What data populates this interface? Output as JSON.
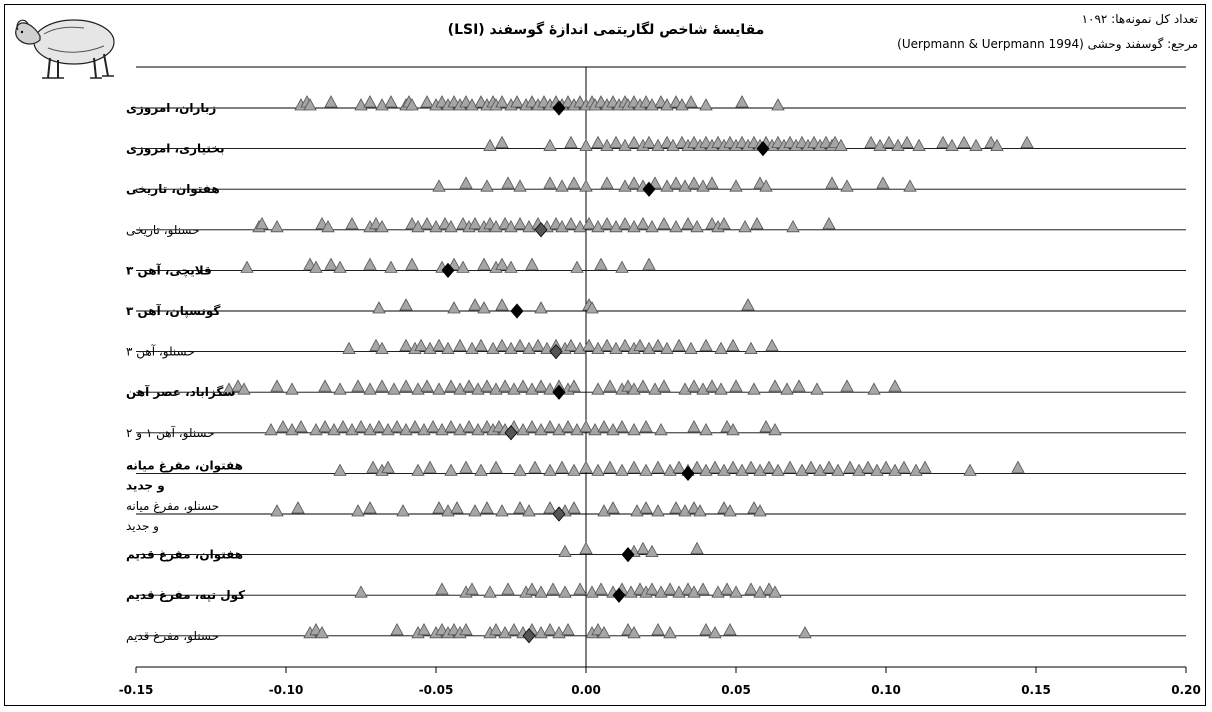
{
  "chart_data": {
    "type": "scatter",
    "title": "مقایسهٔ شاخص لگاریتمی اندازهٔ گوسفند (LSI)",
    "note_total": "تعداد کل نمونه‌ها: ۱۰۹۲",
    "note_reference": "مرجع: گوسفند وحشی (Uerpmann & Uerpmann 1994)",
    "xlim": [
      -0.15,
      0.2
    ],
    "xticks": [
      "-0.15",
      "-0.10",
      "-0.05",
      "0.00",
      "0.05",
      "0.10",
      "0.15",
      "0.20"
    ],
    "xtick_values": [
      -0.15,
      -0.1,
      -0.05,
      0.0,
      0.05,
      0.1,
      0.15,
      0.2
    ],
    "marker_colors": {
      "sample": "#a6a6a6",
      "sample_edge": "#555555",
      "mean_highlight": "#000000",
      "mean_other": "#555555"
    },
    "rows": [
      {
        "label": [
          "زباران، امروزی"
        ],
        "bold": true,
        "mean": -0.009,
        "points": [
          -0.095,
          -0.093,
          -0.092,
          -0.085,
          -0.075,
          -0.072,
          -0.068,
          -0.065,
          -0.06,
          -0.059,
          -0.058,
          -0.053,
          -0.05,
          -0.048,
          -0.046,
          -0.044,
          -0.042,
          -0.04,
          -0.038,
          -0.035,
          -0.033,
          -0.031,
          -0.03,
          -0.028,
          -0.025,
          -0.023,
          -0.02,
          -0.018,
          -0.016,
          -0.014,
          -0.012,
          -0.01,
          -0.008,
          -0.006,
          -0.004,
          -0.002,
          0.0,
          0.002,
          0.003,
          0.005,
          0.007,
          0.009,
          0.011,
          0.013,
          0.014,
          0.016,
          0.018,
          0.02,
          0.022,
          0.025,
          0.027,
          0.03,
          0.032,
          0.035,
          0.04,
          0.052,
          0.064
        ]
      },
      {
        "label": [
          "بختیاری، امروزی"
        ],
        "bold": true,
        "mean": 0.059,
        "points": [
          -0.032,
          -0.028,
          -0.012,
          -0.005,
          0.0,
          0.004,
          0.007,
          0.01,
          0.013,
          0.016,
          0.019,
          0.021,
          0.024,
          0.027,
          0.029,
          0.032,
          0.034,
          0.036,
          0.038,
          0.04,
          0.042,
          0.044,
          0.046,
          0.048,
          0.05,
          0.052,
          0.054,
          0.056,
          0.058,
          0.06,
          0.062,
          0.064,
          0.066,
          0.068,
          0.07,
          0.072,
          0.074,
          0.076,
          0.078,
          0.08,
          0.082,
          0.083,
          0.085,
          0.095,
          0.098,
          0.101,
          0.104,
          0.107,
          0.111,
          0.119,
          0.122,
          0.126,
          0.13,
          0.135,
          0.137,
          0.147
        ]
      },
      {
        "label": [
          "هفتوان، تاریخی"
        ],
        "bold": true,
        "mean": 0.021,
        "points": [
          -0.049,
          -0.04,
          -0.033,
          -0.026,
          -0.022,
          -0.012,
          -0.008,
          -0.004,
          0.0,
          0.007,
          0.013,
          0.016,
          0.019,
          0.023,
          0.027,
          0.03,
          0.033,
          0.036,
          0.039,
          0.042,
          0.05,
          0.058,
          0.06,
          0.082,
          0.087,
          0.099,
          0.108
        ]
      },
      {
        "label": [
          "حسنلو، تاریخی"
        ],
        "bold": false,
        "mean": -0.015,
        "points": [
          -0.109,
          -0.108,
          -0.103,
          -0.088,
          -0.086,
          -0.078,
          -0.072,
          -0.07,
          -0.068,
          -0.058,
          -0.056,
          -0.053,
          -0.05,
          -0.047,
          -0.045,
          -0.041,
          -0.039,
          -0.037,
          -0.034,
          -0.032,
          -0.03,
          -0.027,
          -0.025,
          -0.022,
          -0.019,
          -0.016,
          -0.013,
          -0.01,
          -0.008,
          -0.005,
          -0.002,
          0.001,
          0.004,
          0.007,
          0.01,
          0.013,
          0.016,
          0.019,
          0.022,
          0.026,
          0.03,
          0.034,
          0.037,
          0.042,
          0.044,
          0.046,
          0.053,
          0.057,
          0.069,
          0.081
        ]
      },
      {
        "label": [
          "قلایچی، آهن ۳"
        ],
        "bold": true,
        "mean": -0.046,
        "points": [
          -0.113,
          -0.092,
          -0.09,
          -0.085,
          -0.082,
          -0.072,
          -0.065,
          -0.058,
          -0.048,
          -0.044,
          -0.041,
          -0.034,
          -0.03,
          -0.028,
          -0.025,
          -0.018,
          -0.003,
          0.005,
          0.012,
          0.021
        ]
      },
      {
        "label": [
          "گونسپان، آهن ۳"
        ],
        "bold": true,
        "mean": -0.023,
        "points": [
          -0.069,
          -0.06,
          -0.044,
          -0.037,
          -0.034,
          -0.028,
          -0.015,
          0.001,
          0.002,
          0.054
        ]
      },
      {
        "label": [
          "حسنلو، آهن ۳"
        ],
        "bold": false,
        "mean": -0.01,
        "points": [
          -0.079,
          -0.07,
          -0.068,
          -0.06,
          -0.057,
          -0.055,
          -0.052,
          -0.049,
          -0.046,
          -0.042,
          -0.038,
          -0.035,
          -0.031,
          -0.028,
          -0.025,
          -0.022,
          -0.019,
          -0.016,
          -0.013,
          -0.01,
          -0.007,
          -0.005,
          -0.002,
          0.001,
          0.004,
          0.007,
          0.01,
          0.013,
          0.016,
          0.018,
          0.021,
          0.024,
          0.027,
          0.031,
          0.035,
          0.04,
          0.045,
          0.049,
          0.055,
          0.062
        ]
      },
      {
        "label": [
          "سگزاباد، عصر آهن"
        ],
        "bold": true,
        "mean": -0.009,
        "points": [
          -0.119,
          -0.116,
          -0.114,
          -0.103,
          -0.098,
          -0.087,
          -0.082,
          -0.076,
          -0.072,
          -0.068,
          -0.064,
          -0.06,
          -0.056,
          -0.053,
          -0.049,
          -0.045,
          -0.042,
          -0.039,
          -0.036,
          -0.033,
          -0.03,
          -0.027,
          -0.024,
          -0.021,
          -0.018,
          -0.015,
          -0.012,
          -0.009,
          -0.006,
          -0.004,
          0.004,
          0.008,
          0.012,
          0.014,
          0.016,
          0.019,
          0.023,
          0.026,
          0.033,
          0.036,
          0.039,
          0.042,
          0.045,
          0.05,
          0.056,
          0.063,
          0.067,
          0.071,
          0.077,
          0.087,
          0.096,
          0.103
        ]
      },
      {
        "label": [
          "حسنلو، آهن ۱ و ۲"
        ],
        "bold": false,
        "mean": -0.025,
        "points": [
          -0.105,
          -0.101,
          -0.098,
          -0.095,
          -0.09,
          -0.087,
          -0.084,
          -0.081,
          -0.078,
          -0.075,
          -0.072,
          -0.069,
          -0.066,
          -0.063,
          -0.06,
          -0.057,
          -0.054,
          -0.051,
          -0.048,
          -0.045,
          -0.042,
          -0.039,
          -0.036,
          -0.033,
          -0.031,
          -0.029,
          -0.027,
          -0.024,
          -0.021,
          -0.018,
          -0.015,
          -0.012,
          -0.009,
          -0.006,
          -0.003,
          0.0,
          0.003,
          0.006,
          0.009,
          0.012,
          0.016,
          0.02,
          0.025,
          0.036,
          0.04,
          0.047,
          0.049,
          0.06,
          0.063
        ]
      },
      {
        "label": [
          "هفتوان، مفرغ میانه",
          "و جدید"
        ],
        "bold": true,
        "mean": 0.034,
        "points": [
          -0.082,
          -0.071,
          -0.068,
          -0.066,
          -0.056,
          -0.052,
          -0.045,
          -0.04,
          -0.035,
          -0.03,
          -0.022,
          -0.017,
          -0.012,
          -0.008,
          -0.004,
          0.0,
          0.004,
          0.008,
          0.012,
          0.016,
          0.02,
          0.024,
          0.028,
          0.031,
          0.034,
          0.037,
          0.04,
          0.043,
          0.046,
          0.049,
          0.052,
          0.055,
          0.058,
          0.061,
          0.064,
          0.068,
          0.072,
          0.075,
          0.078,
          0.081,
          0.084,
          0.088,
          0.091,
          0.094,
          0.097,
          0.1,
          0.103,
          0.106,
          0.11,
          0.113,
          0.128,
          0.144
        ]
      },
      {
        "label": [
          "حسنلو، مفرغ میانه",
          "و جدید"
        ],
        "bold": false,
        "mean": -0.009,
        "points": [
          -0.103,
          -0.096,
          -0.076,
          -0.072,
          -0.061,
          -0.049,
          -0.046,
          -0.043,
          -0.037,
          -0.033,
          -0.028,
          -0.022,
          -0.019,
          -0.012,
          -0.007,
          -0.004,
          0.006,
          0.009,
          0.017,
          0.02,
          0.024,
          0.03,
          0.033,
          0.036,
          0.038,
          0.046,
          0.048,
          0.056,
          0.058
        ]
      },
      {
        "label": [
          "هفتوان، مفرغ قدیم"
        ],
        "bold": true,
        "mean": 0.014,
        "points": [
          -0.007,
          0.0,
          0.016,
          0.019,
          0.022,
          0.037
        ]
      },
      {
        "label": [
          "کول تپه، مفرغ قدیم"
        ],
        "bold": true,
        "mean": 0.011,
        "points": [
          -0.075,
          -0.048,
          -0.04,
          -0.038,
          -0.032,
          -0.026,
          -0.02,
          -0.018,
          -0.015,
          -0.011,
          -0.007,
          -0.002,
          0.002,
          0.005,
          0.009,
          0.012,
          0.015,
          0.018,
          0.02,
          0.022,
          0.025,
          0.028,
          0.031,
          0.034,
          0.036,
          0.039,
          0.044,
          0.047,
          0.05,
          0.055,
          0.058,
          0.061,
          0.063
        ]
      },
      {
        "label": [
          "حسنلو، مفرغ قدیم"
        ],
        "bold": false,
        "mean": -0.019,
        "points": [
          -0.092,
          -0.09,
          -0.088,
          -0.063,
          -0.056,
          -0.054,
          -0.05,
          -0.048,
          -0.046,
          -0.044,
          -0.042,
          -0.04,
          -0.032,
          -0.03,
          -0.027,
          -0.024,
          -0.021,
          -0.018,
          -0.015,
          -0.012,
          -0.009,
          -0.006,
          0.002,
          0.004,
          0.006,
          0.014,
          0.016,
          0.024,
          0.028,
          0.04,
          0.043,
          0.048,
          0.073
        ]
      }
    ]
  }
}
